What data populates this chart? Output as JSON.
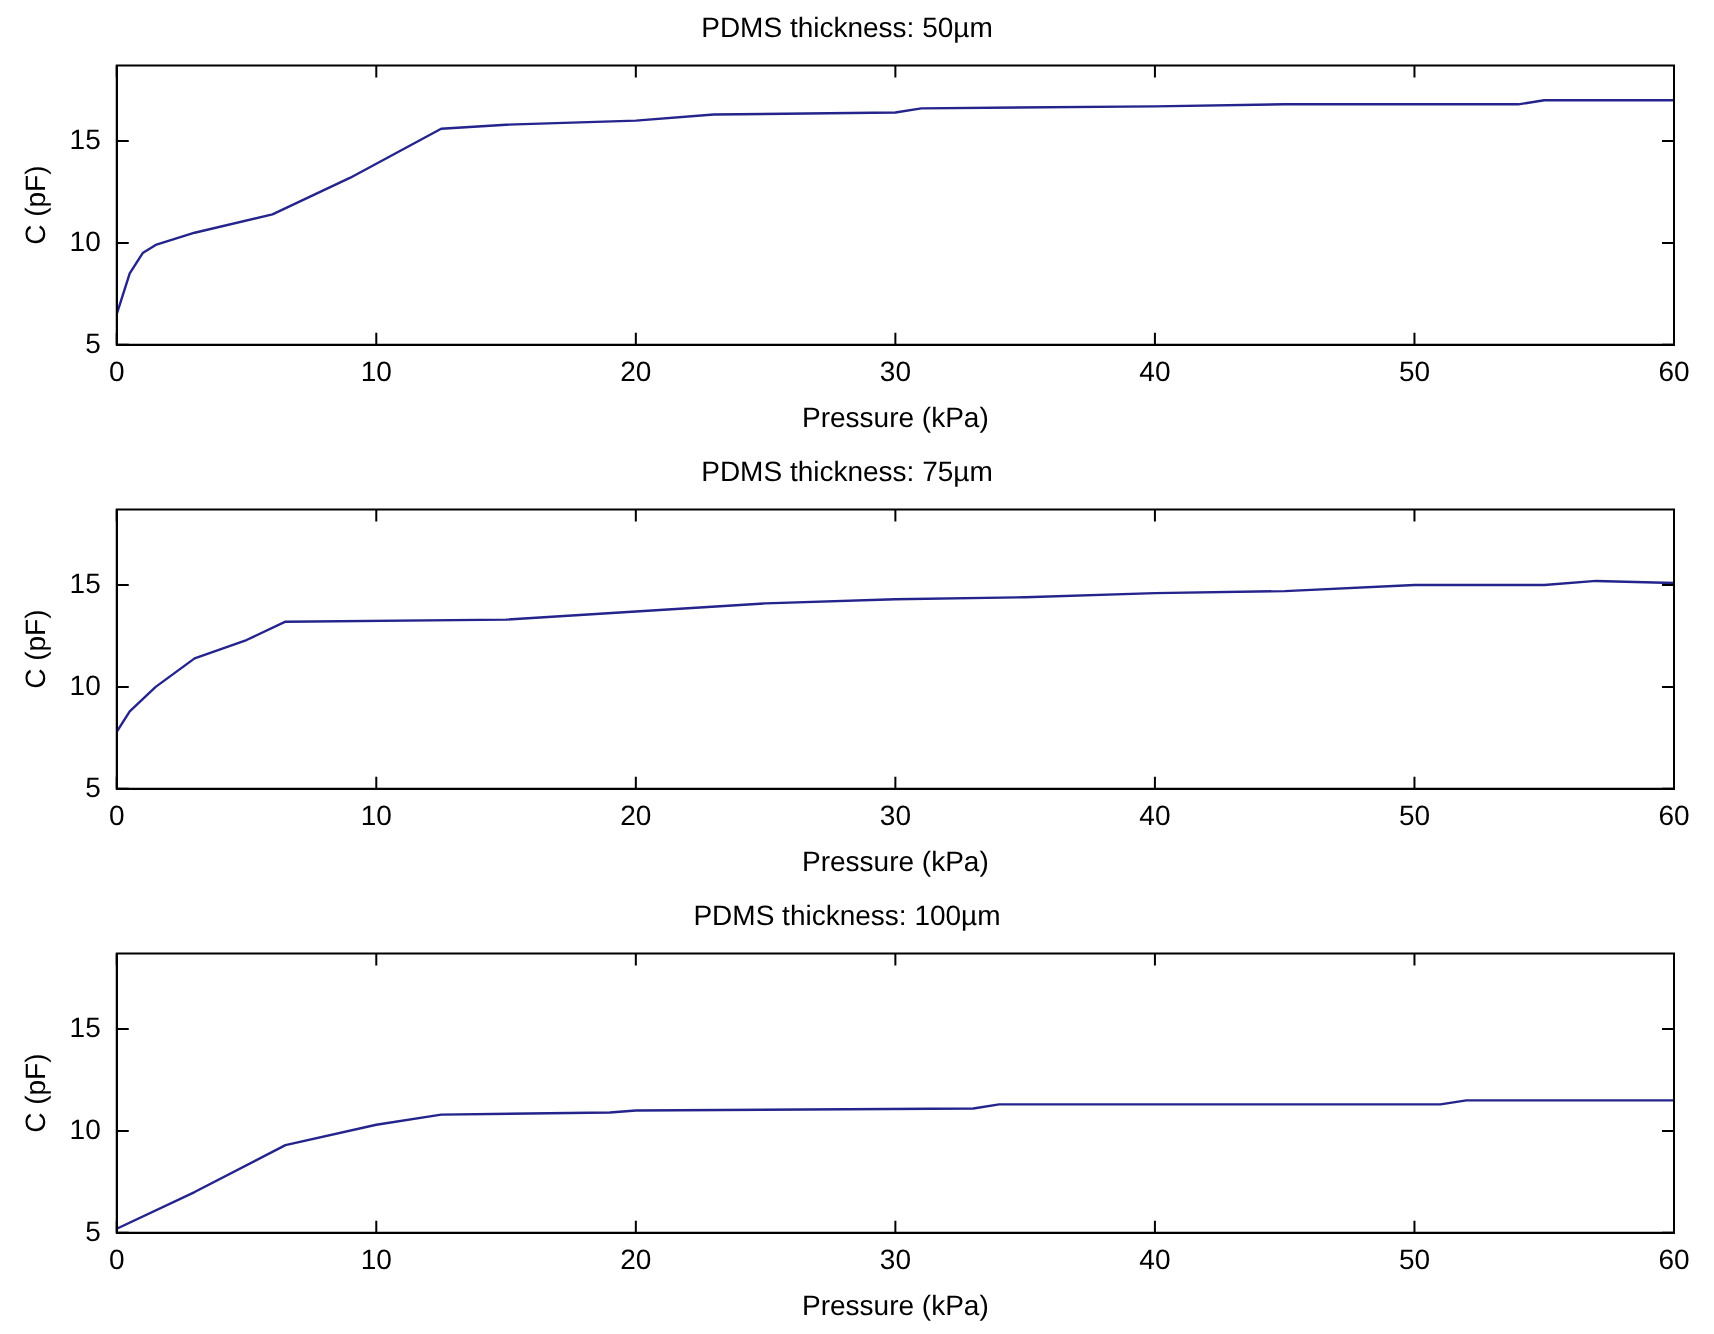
{
  "chart_data": [
    {
      "type": "line",
      "title": "PDMS thickness: 50µm",
      "xlabel": "Pressure (kPa)",
      "ylabel": "C (pF)",
      "xlim": [
        0,
        60
      ],
      "xticks": [
        0,
        10,
        20,
        30,
        40,
        50,
        60
      ],
      "ylim": [
        5,
        18.7
      ],
      "yticks": [
        5,
        10,
        15
      ],
      "grid": false,
      "legend": false,
      "marker": "none",
      "line_style": "solid",
      "series": [
        {
          "color": "#24248c",
          "x": [
            0,
            0.5,
            1,
            1.5,
            3,
            6,
            9,
            12.5,
            15,
            20,
            23,
            30,
            31,
            40,
            45,
            54,
            55,
            60
          ],
          "values": [
            6.5,
            8.5,
            9.5,
            9.9,
            10.5,
            11.4,
            13.2,
            15.6,
            15.8,
            16.0,
            16.3,
            16.4,
            16.6,
            16.7,
            16.8,
            16.8,
            17.0,
            17.0
          ]
        }
      ]
    },
    {
      "type": "line",
      "title": "PDMS thickness: 75µm",
      "xlabel": "Pressure (kPa)",
      "ylabel": "C (pF)",
      "xlim": [
        0,
        60
      ],
      "xticks": [
        0,
        10,
        20,
        30,
        40,
        50,
        60
      ],
      "ylim": [
        5,
        18.7
      ],
      "yticks": [
        5,
        10,
        15
      ],
      "grid": false,
      "legend": false,
      "marker": "none",
      "line_style": "solid",
      "series": [
        {
          "color": "#24248c",
          "x": [
            0,
            0.5,
            1.5,
            3,
            5,
            6.5,
            15,
            20,
            25,
            30,
            35,
            40,
            45,
            50,
            55,
            57,
            60
          ],
          "values": [
            7.8,
            8.8,
            10,
            11.4,
            12.3,
            13.2,
            13.3,
            13.7,
            14.1,
            14.3,
            14.4,
            14.6,
            14.7,
            15.0,
            15.0,
            15.2,
            15.1
          ]
        }
      ]
    },
    {
      "type": "line",
      "title": "PDMS thickness: 100µm",
      "xlabel": "Pressure (kPa)",
      "ylabel": "C (pF)",
      "xlim": [
        0,
        60
      ],
      "xticks": [
        0,
        10,
        20,
        30,
        40,
        50,
        60
      ],
      "ylim": [
        5,
        18.7
      ],
      "yticks": [
        5,
        10,
        15
      ],
      "grid": false,
      "legend": false,
      "marker": "none",
      "line_style": "solid",
      "series": [
        {
          "color": "#24248c",
          "x": [
            0,
            3,
            6.5,
            10,
            12.5,
            19,
            20,
            33,
            34,
            51,
            52,
            60
          ],
          "values": [
            5.2,
            7,
            9.3,
            10.3,
            10.8,
            10.9,
            11.0,
            11.1,
            11.3,
            11.3,
            11.5,
            11.5
          ]
        }
      ]
    }
  ]
}
